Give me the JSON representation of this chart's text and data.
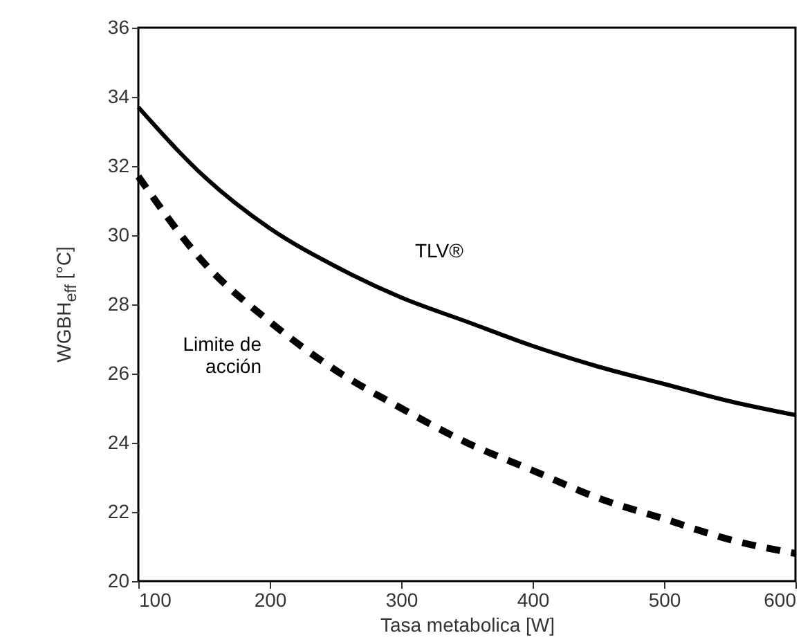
{
  "chart_data": {
    "type": "line",
    "xlabel": "Tasa metabolica    [W]",
    "ylabel": "WGBH$_{eff}$  [°C]",
    "x": [
      100,
      150,
      200,
      250,
      300,
      350,
      400,
      450,
      500,
      550,
      600
    ],
    "series": [
      {
        "name": "TLV®",
        "color": "#000000",
        "line_style": "solid",
        "values": [
          33.7,
          31.7,
          30.2,
          29.1,
          28.2,
          27.5,
          26.8,
          26.2,
          25.7,
          25.2,
          24.8
        ]
      },
      {
        "name": "Limite de\nacción",
        "color": "#000000",
        "line_style": "dashed",
        "values": [
          31.7,
          29.2,
          27.5,
          26.1,
          25.0,
          24.0,
          23.2,
          22.4,
          21.8,
          21.2,
          20.8
        ]
      }
    ],
    "xlim": [
      100,
      600
    ],
    "xticks": [
      100,
      200,
      300,
      400,
      500,
      600
    ],
    "ylim": [
      20,
      36
    ],
    "yticks": [
      20,
      22,
      24,
      26,
      28,
      30,
      32,
      34,
      36
    ],
    "marker": "none"
  }
}
